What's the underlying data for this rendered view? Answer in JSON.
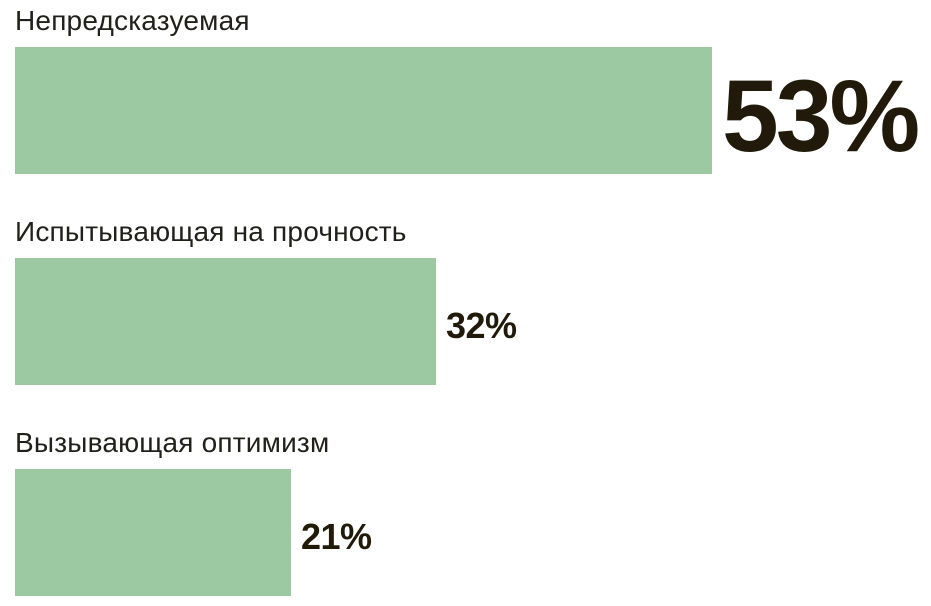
{
  "chart_data": {
    "type": "bar",
    "orientation": "horizontal",
    "categories": [
      "Непредсказуемая",
      "Испытывающая на прочность",
      "Вызывающая оптимизм"
    ],
    "values": [
      53,
      32,
      21
    ],
    "value_labels": [
      "53%",
      "32%",
      "21%"
    ],
    "unit": "%",
    "bar_color": "#9cc8a2",
    "category_label_color": "#21201a",
    "value_label_color": "#211a0b",
    "background_color": "#ffffff",
    "grid": false,
    "legend": false,
    "axes_visible": false,
    "value_label_position": "right-of-bar",
    "emphasized_value_index": 0
  }
}
